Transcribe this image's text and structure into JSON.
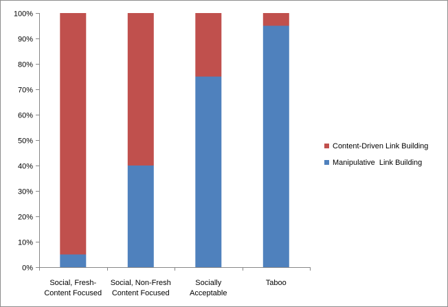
{
  "chart_data": {
    "type": "bar",
    "stacked": true,
    "percent": true,
    "categories": [
      [
        "Social, Fresh-",
        "Content Focused"
      ],
      [
        "Social, Non-Fresh",
        "Content Focused"
      ],
      [
        "Socially",
        "Acceptable"
      ],
      [
        "Taboo"
      ]
    ],
    "series": [
      {
        "name": "Manipulative  Link Building",
        "color": "#4f81bd",
        "values": [
          5,
          40,
          75,
          95
        ]
      },
      {
        "name": "Content-Driven Link Building",
        "color": "#c0504d",
        "values": [
          95,
          60,
          25,
          5
        ]
      }
    ],
    "ylim": [
      0,
      100
    ],
    "yticks": [
      "0%",
      "10%",
      "20%",
      "30%",
      "40%",
      "50%",
      "60%",
      "70%",
      "80%",
      "90%",
      "100%"
    ],
    "grid": false,
    "legend": {
      "position": "right",
      "order": [
        "Content-Driven Link Building",
        "Manipulative  Link Building"
      ]
    },
    "title": "",
    "xlabel": "",
    "ylabel": ""
  }
}
